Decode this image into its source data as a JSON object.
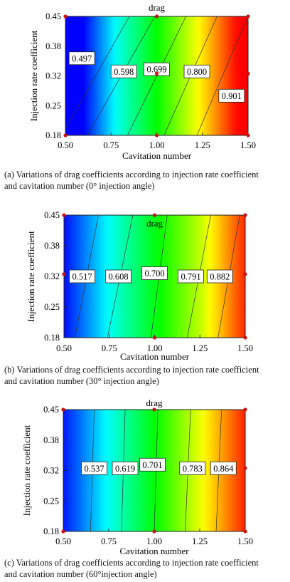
{
  "figures": [
    {
      "caption_line1": "(a) Variations of drag coefficients according to injection rate coefficient",
      "caption_line2": "and cavitation number (0° injection angle)"
    },
    {
      "caption_line1": "(b) Variations of drag coefficients according to injection rate coefficient",
      "caption_line2": "and cavitation number (30° injection angle)"
    },
    {
      "caption_line1": "(c) Variations of drag coefficients according to injection rate coefficient",
      "caption_line2": "and cavitation number (60°injection angle)"
    }
  ],
  "chart_data": [
    {
      "type": "heatmap",
      "title": "drag",
      "xlabel": "Cavitation number",
      "ylabel": "Injection rate coefficient",
      "xlim": [
        0.5,
        1.5
      ],
      "ylim": [
        0.18,
        0.45
      ],
      "xticks": [
        "0.50",
        "0.75",
        "1.00",
        "1.25",
        "1.50"
      ],
      "yticks": [
        "0.18",
        "0.25",
        "0.32",
        "0.38",
        "0.45"
      ],
      "colormap": [
        "#0000ff",
        "#00ffff",
        "#00ff00",
        "#ffff00",
        "#ff0000"
      ],
      "value_range": [
        0.45,
        0.95
      ],
      "contour_levels": [
        0.497,
        0.598,
        0.699,
        0.8,
        0.901
      ],
      "contours": [
        {
          "level": 0.497,
          "x_bottom": 0.48,
          "x_top": 0.85,
          "label": "0.497",
          "label_x": 0.59,
          "label_y": 0.355
        },
        {
          "level": 0.598,
          "x_bottom": 0.62,
          "x_top": 0.99,
          "label": "0.598",
          "label_x": 0.82,
          "label_y": 0.325
        },
        {
          "level": 0.699,
          "x_bottom": 0.84,
          "x_top": 1.16,
          "label": "0.699",
          "label_x": 1.0,
          "label_y": 0.33
        },
        {
          "level": 0.8,
          "x_bottom": 1.04,
          "x_top": 1.33,
          "label": "0.800",
          "label_x": 1.22,
          "label_y": 0.325
        },
        {
          "level": 0.901,
          "x_bottom": 1.22,
          "x_top": 1.5,
          "label": "0.901",
          "label_x": 1.41,
          "label_y": 0.27
        }
      ],
      "markers": [
        {
          "x": 0.5,
          "y": 0.18
        },
        {
          "x": 0.5,
          "y": 0.45
        },
        {
          "x": 1.0,
          "y": 0.18
        },
        {
          "x": 1.0,
          "y": 0.32
        },
        {
          "x": 1.0,
          "y": 0.45
        },
        {
          "x": 1.5,
          "y": 0.18
        },
        {
          "x": 1.5,
          "y": 0.32
        },
        {
          "x": 1.5,
          "y": 0.45
        }
      ]
    },
    {
      "type": "heatmap",
      "title": "drag",
      "xlabel": "Cavitation number",
      "ylabel": "Injection rate coefficient",
      "xlim": [
        0.5,
        1.5
      ],
      "ylim": [
        0.18,
        0.45
      ],
      "xticks": [
        "0.50",
        "0.75",
        "1.00",
        "1.25",
        "1.50"
      ],
      "yticks": [
        "0.18",
        "0.25",
        "0.32",
        "0.38",
        "0.45"
      ],
      "colormap": [
        "#0000ff",
        "#00ffff",
        "#00ff00",
        "#ffff00",
        "#ff0000"
      ],
      "value_range": [
        0.45,
        0.95
      ],
      "contour_levels": [
        0.517,
        0.608,
        0.7,
        0.791,
        0.882
      ],
      "contours": [
        {
          "level": 0.517,
          "x_bottom": 0.56,
          "x_top": 0.69,
          "label": "0.517",
          "label_x": 0.6,
          "label_y": 0.315
        },
        {
          "level": 0.608,
          "x_bottom": 0.74,
          "x_top": 0.88,
          "label": "0.608",
          "label_x": 0.8,
          "label_y": 0.315
        },
        {
          "level": 0.7,
          "x_bottom": 0.98,
          "x_top": 1.07,
          "label": "0.700",
          "label_x": 1.0,
          "label_y": 0.322
        },
        {
          "level": 0.791,
          "x_bottom": 1.18,
          "x_top": 1.31,
          "label": "0.791",
          "label_x": 1.2,
          "label_y": 0.315
        },
        {
          "level": 0.882,
          "x_bottom": 1.35,
          "x_top": 1.47,
          "label": "0.882",
          "label_x": 1.36,
          "label_y": 0.315
        }
      ],
      "markers": [
        {
          "x": 0.5,
          "y": 0.32
        },
        {
          "x": 0.5,
          "y": 0.45
        },
        {
          "x": 1.0,
          "y": 0.18
        },
        {
          "x": 1.0,
          "y": 0.45
        },
        {
          "x": 1.5,
          "y": 0.18
        },
        {
          "x": 1.5,
          "y": 0.32
        },
        {
          "x": 1.5,
          "y": 0.45
        }
      ]
    },
    {
      "type": "heatmap",
      "title": "drag",
      "xlabel": "Cavitation number",
      "ylabel": "Injection rate coefficient",
      "xlim": [
        0.5,
        1.5
      ],
      "ylim": [
        0.18,
        0.45
      ],
      "xticks": [
        "0.50",
        "0.75",
        "1.00",
        "1.25",
        "1.50"
      ],
      "yticks": [
        "0.18",
        "0.25",
        "0.32",
        "0.38",
        "0.45"
      ],
      "colormap": [
        "#0000ff",
        "#00ffff",
        "#00ff00",
        "#ffff00",
        "#ff0000"
      ],
      "value_range": [
        0.45,
        0.95
      ],
      "contour_levels": [
        0.537,
        0.619,
        0.701,
        0.783,
        0.864
      ],
      "contours": [
        {
          "level": 0.537,
          "x_bottom": 0.65,
          "x_top": 0.67,
          "label": "0.537",
          "label_x": 0.67,
          "label_y": 0.32
        },
        {
          "level": 0.619,
          "x_bottom": 0.82,
          "x_top": 0.84,
          "label": "0.619",
          "label_x": 0.84,
          "label_y": 0.32
        },
        {
          "level": 0.701,
          "x_bottom": 1.0,
          "x_top": 1.02,
          "label": "0.701",
          "label_x": 0.99,
          "label_y": 0.328
        },
        {
          "level": 0.783,
          "x_bottom": 1.17,
          "x_top": 1.2,
          "label": "0.783",
          "label_x": 1.21,
          "label_y": 0.32
        },
        {
          "level": 0.864,
          "x_bottom": 1.34,
          "x_top": 1.37,
          "label": "0.864",
          "label_x": 1.38,
          "label_y": 0.32
        }
      ],
      "markers": [
        {
          "x": 0.5,
          "y": 0.18
        },
        {
          "x": 0.5,
          "y": 0.45
        },
        {
          "x": 1.0,
          "y": 0.18
        },
        {
          "x": 1.0,
          "y": 0.45
        },
        {
          "x": 1.5,
          "y": 0.18
        },
        {
          "x": 1.5,
          "y": 0.32
        },
        {
          "x": 1.5,
          "y": 0.45
        }
      ]
    }
  ]
}
